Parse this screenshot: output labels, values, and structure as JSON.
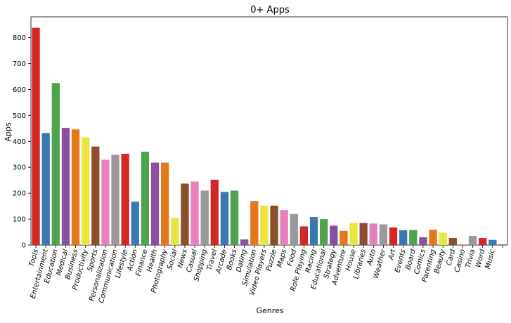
{
  "chart_data": {
    "type": "bar",
    "title": "0+ Apps",
    "xlabel": "Genres",
    "ylabel": "Apps",
    "ylim": [
      0,
      880
    ],
    "yticks": [
      0,
      100,
      200,
      300,
      400,
      500,
      600,
      700,
      800
    ],
    "grid": false,
    "legend": "none",
    "categories": [
      "Tools",
      "Entertainment",
      "Education",
      "Medical",
      "Business",
      "Productivity",
      "Sports",
      "Personalization",
      "Communication",
      "Lifestyle",
      "Action",
      "Finance",
      "Health",
      "Photography",
      "Social",
      "News",
      "Casual",
      "Shopping",
      "Travel",
      "Arcade",
      "Books",
      "Dating",
      "Simulation",
      "Video Players",
      "Puzzle",
      "Maps",
      "Food",
      "Role Playing",
      "Racing",
      "Educational",
      "Strategy",
      "Adventure",
      "House",
      "Libraries",
      "Auto",
      "Weather",
      "Art",
      "Events",
      "Board",
      "Comics",
      "Parenting",
      "Beauty",
      "Card",
      "Casino",
      "Trivia",
      "Word",
      "Music",
      ""
    ],
    "values": [
      838,
      432,
      625,
      452,
      446,
      415,
      380,
      329,
      348,
      352,
      167,
      360,
      318,
      318,
      105,
      237,
      245,
      210,
      252,
      205,
      210,
      22,
      170,
      152,
      152,
      135,
      120,
      72,
      108,
      100,
      75,
      55,
      85,
      85,
      83,
      80,
      68,
      57,
      58,
      30,
      59,
      48,
      27,
      3,
      35,
      27,
      20,
      3
    ],
    "colors": [
      "#d62728",
      "#3a78b0",
      "#4fa24e",
      "#8c4f9e",
      "#e5781b",
      "#ece43e",
      "#8c4f2e",
      "#e780bd",
      "#999999",
      "#d62728",
      "#3a78b0",
      "#4fa24e",
      "#8c4f9e",
      "#e5781b",
      "#ece43e",
      "#8c4f2e",
      "#e780bd",
      "#999999",
      "#d62728",
      "#3a78b0",
      "#4fa24e",
      "#8c4f9e",
      "#e5781b",
      "#ece43e",
      "#8c4f2e",
      "#e780bd",
      "#999999",
      "#d62728",
      "#3a78b0",
      "#4fa24e",
      "#8c4f9e",
      "#e5781b",
      "#ece43e",
      "#8c4f2e",
      "#e780bd",
      "#999999",
      "#d62728",
      "#3a78b0",
      "#4fa24e",
      "#8c4f9e",
      "#e5781b",
      "#ece43e",
      "#8c4f2e",
      "#e780bd",
      "#999999",
      "#d62728",
      "#3a78b0",
      "#4fa24e"
    ]
  }
}
